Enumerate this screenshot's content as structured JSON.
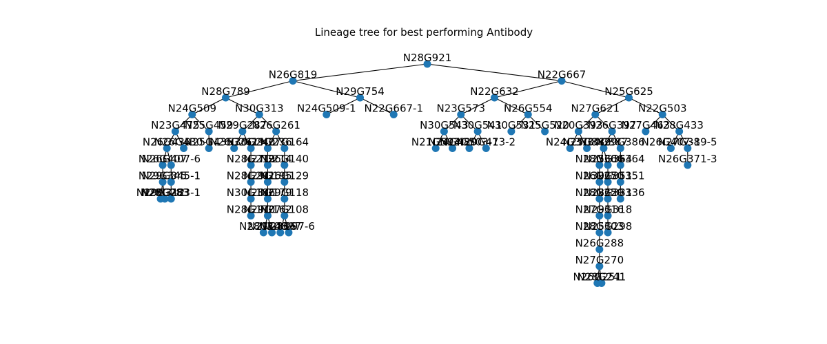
{
  "title": "Lineage tree for best performing Antibody",
  "colors": {
    "node": "#1f77b4",
    "edge": "#000000",
    "text": "#000000"
  },
  "tree": {
    "name": "N28G921",
    "children": [
      {
        "name": "N26G819",
        "children": [
          {
            "name": "N28G789",
            "children": [
              {
                "name": "N24G509",
                "children": [
                  {
                    "name": "N23G475",
                    "children": [
                      {
                        "name": "N26G430",
                        "children": [
                          {
                            "name": "N26G407",
                            "children": [
                              {
                                "name": "N29G345",
                                "children": [
                                  {
                                    "name": "N29G312",
                                    "children": []
                                  },
                                  {
                                    "name": "N28G283",
                                    "children": []
                                  }
                                ]
                              }
                            ]
                          },
                          {
                            "name": "N26G407-6",
                            "children": [
                              {
                                "name": "N29G345-1",
                                "children": [
                                  {
                                    "name": "N28G283-1",
                                    "children": []
                                  }
                                ]
                              }
                            ]
                          }
                        ]
                      },
                      {
                        "name": "N26G430-1",
                        "children": []
                      }
                    ]
                  },
                  {
                    "name": "N25G459",
                    "children": [
                      {
                        "name": "N25G435",
                        "children": []
                      }
                    ]
                  }
                ]
              },
              {
                "name": "N30G313",
                "children": [
                  {
                    "name": "N29G287",
                    "children": [
                      {
                        "name": "N26G261",
                        "children": []
                      },
                      {
                        "name": "N30G240",
                        "children": [
                          {
                            "name": "N28G219",
                            "children": [
                              {
                                "name": "N28G201",
                                "children": [
                                  {
                                    "name": "N30G186",
                                    "children": [
                                      {
                                        "name": "N28G170",
                                        "children": []
                                      }
                                    ]
                                  }
                                ]
                              }
                            ]
                          }
                        ]
                      }
                    ]
                  },
                  {
                    "name": "N26G261",
                    "children": [
                      {
                        "name": "N29G236",
                        "children": [
                          {
                            "name": "N27G214",
                            "children": [
                              {
                                "name": "N29G195",
                                "children": [
                                  {
                                    "name": "N28G179",
                                    "children": [
                                      {
                                        "name": "N29G162",
                                        "children": [
                                          {
                                            "name": "N28G148",
                                            "children": []
                                          },
                                          {
                                            "name": "N27G136",
                                            "children": []
                                          }
                                        ]
                                      }
                                    ]
                                  }
                                ]
                              }
                            ]
                          }
                        ]
                      },
                      {
                        "name": "N27G164",
                        "children": [
                          {
                            "name": "N26G140",
                            "children": [
                              {
                                "name": "N26G129",
                                "children": [
                                  {
                                    "name": "N29G118",
                                    "children": [
                                      {
                                        "name": "N27G108",
                                        "children": [
                                          {
                                            "name": "N30G97",
                                            "children": []
                                          },
                                          {
                                            "name": "N28G97-6",
                                            "children": []
                                          }
                                        ]
                                      }
                                    ]
                                  }
                                ]
                              }
                            ]
                          }
                        ]
                      }
                    ]
                  }
                ]
              }
            ]
          },
          {
            "name": "N29G754",
            "children": [
              {
                "name": "N24G509-1",
                "children": []
              },
              {
                "name": "N22G667-1",
                "children": []
              }
            ]
          }
        ]
      },
      {
        "name": "N22G667",
        "children": [
          {
            "name": "N22G632",
            "children": [
              {
                "name": "N23G573",
                "children": [
                  {
                    "name": "N30G543",
                    "children": [
                      {
                        "name": "N21G503",
                        "children": []
                      },
                      {
                        "name": "N24G480",
                        "children": []
                      }
                    ]
                  },
                  {
                    "name": "N30G541",
                    "children": [
                      {
                        "name": "N24G503-1",
                        "children": []
                      },
                      {
                        "name": "N29G473-2",
                        "children": []
                      }
                    ]
                  }
                ]
              },
              {
                "name": "N26G554",
                "children": [
                  {
                    "name": "N30G531",
                    "children": []
                  },
                  {
                    "name": "N25G520",
                    "children": []
                  }
                ]
              }
            ]
          },
          {
            "name": "N25G625",
            "children": [
              {
                "name": "N27G621",
                "children": [
                  {
                    "name": "N20G393",
                    "children": [
                      {
                        "name": "N24G370",
                        "children": []
                      },
                      {
                        "name": "N25G389",
                        "children": []
                      }
                    ]
                  },
                  {
                    "name": "N26G397",
                    "children": [
                      {
                        "name": "N30G387",
                        "children": [
                          {
                            "name": "N28G364",
                            "children": [
                              {
                                "name": "N26G350",
                                "children": [
                                  {
                                    "name": "N28G329",
                                    "children": [
                                      {
                                        "name": "N27G316",
                                        "children": [
                                          {
                                            "name": "N28G303",
                                            "children": [
                                              {
                                                "name": "N26G288",
                                                "children": [
                                                  {
                                                    "name": "N27G270",
                                                    "children": [
                                                      {
                                                        "name": "N26G251",
                                                        "children": []
                                                      },
                                                      {
                                                        "name": "N28G241",
                                                        "children": []
                                                      }
                                                    ]
                                                  }
                                                ]
                                              }
                                            ]
                                          }
                                        ]
                                      }
                                    ]
                                  }
                                ]
                              }
                            ]
                          },
                          {
                            "name": "N25G364",
                            "children": [
                              {
                                "name": "N30G351",
                                "children": [
                                  {
                                    "name": "N28G331",
                                    "children": [
                                      {
                                        "name": "N29G318",
                                        "children": [
                                          {
                                            "name": "N25G298",
                                            "children": []
                                          }
                                        ]
                                      }
                                    ]
                                  }
                                ]
                              }
                            ]
                          }
                        ]
                      },
                      {
                        "name": "N29G386",
                        "children": [
                          {
                            "name": "N30G364",
                            "children": [
                              {
                                "name": "N27G351",
                                "children": [
                                  {
                                    "name": "N25G336",
                                    "children": []
                                  }
                                ]
                              }
                            ]
                          }
                        ]
                      }
                    ]
                  }
                ]
              },
              {
                "name": "N22G503",
                "children": [
                  {
                    "name": "N27G463",
                    "children": []
                  },
                  {
                    "name": "N28G433",
                    "children": [
                      {
                        "name": "N26G407-1",
                        "children": []
                      },
                      {
                        "name": "N27G389-5",
                        "children": [
                          {
                            "name": "N26G371-3",
                            "children": []
                          }
                        ]
                      }
                    ]
                  }
                ]
              }
            ]
          }
        ]
      }
    ]
  }
}
